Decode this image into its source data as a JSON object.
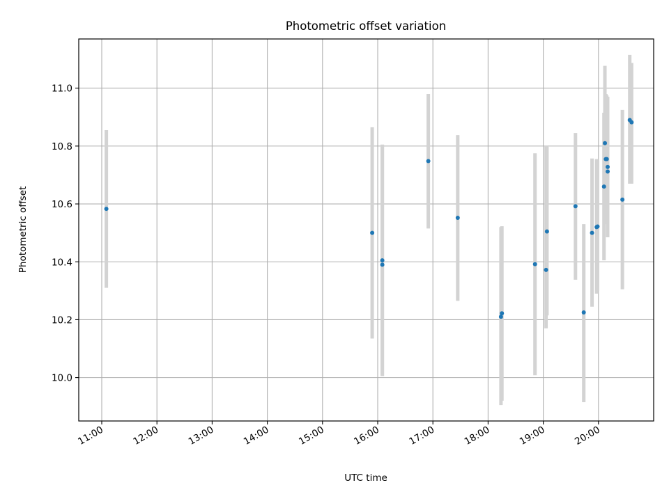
{
  "chart_data": {
    "type": "scatter",
    "title": "Photometric offset variation",
    "xlabel": "UTC time",
    "ylabel": "Photometric offset",
    "x_unit": "hours UTC",
    "xlim": [
      "10:35",
      "21:00"
    ],
    "ylim": [
      9.85,
      11.17
    ],
    "x_ticks": [
      "11:00",
      "12:00",
      "13:00",
      "14:00",
      "15:00",
      "16:00",
      "17:00",
      "18:00",
      "19:00",
      "20:00"
    ],
    "y_ticks": [
      "10.0",
      "10.2",
      "10.4",
      "10.6",
      "10.8",
      "11.0"
    ],
    "grid": true,
    "point_color": "#1f77b4",
    "errorbar_color": "#d3d3d3",
    "points": [
      {
        "x": "11:05",
        "y": 10.583,
        "lo": 10.31,
        "hi": 10.855
      },
      {
        "x": "15:54",
        "y": 10.5,
        "lo": 10.135,
        "hi": 10.865
      },
      {
        "x": "16:05",
        "y": 10.405,
        "lo": 10.005,
        "hi": 10.805
      },
      {
        "x": "16:05",
        "y": 10.39,
        "lo": 10.005,
        "hi": 10.8
      },
      {
        "x": "16:55",
        "y": 10.748,
        "lo": 10.515,
        "hi": 10.98
      },
      {
        "x": "17:27",
        "y": 10.552,
        "lo": 10.265,
        "hi": 10.838
      },
      {
        "x": "18:14",
        "y": 10.21,
        "lo": 9.905,
        "hi": 10.52
      },
      {
        "x": "18:15",
        "y": 10.222,
        "lo": 9.92,
        "hi": 10.523
      },
      {
        "x": "18:51",
        "y": 10.392,
        "lo": 10.008,
        "hi": 10.775
      },
      {
        "x": "19:03",
        "y": 10.372,
        "lo": 10.17,
        "hi": 10.8
      },
      {
        "x": "19:04",
        "y": 10.505,
        "lo": 10.215,
        "hi": 10.798
      },
      {
        "x": "19:35",
        "y": 10.592,
        "lo": 10.338,
        "hi": 10.845
      },
      {
        "x": "19:44",
        "y": 10.225,
        "lo": 9.915,
        "hi": 10.53
      },
      {
        "x": "19:53",
        "y": 10.5,
        "lo": 10.245,
        "hi": 10.757
      },
      {
        "x": "19:58",
        "y": 10.52,
        "lo": 10.29,
        "hi": 10.755
      },
      {
        "x": "19:59",
        "y": 10.522,
        "lo": 10.3,
        "hi": 10.75
      },
      {
        "x": "20:06",
        "y": 10.66,
        "lo": 10.405,
        "hi": 10.915
      },
      {
        "x": "20:07",
        "y": 10.81,
        "lo": 10.545,
        "hi": 11.077
      },
      {
        "x": "20:08",
        "y": 10.755,
        "lo": 10.53,
        "hi": 10.98
      },
      {
        "x": "20:09",
        "y": 10.755,
        "lo": 10.53,
        "hi": 10.975
      },
      {
        "x": "20:10",
        "y": 10.728,
        "lo": 10.485,
        "hi": 10.97
      },
      {
        "x": "20:10",
        "y": 10.712,
        "lo": 10.485,
        "hi": 10.94
      },
      {
        "x": "20:26",
        "y": 10.615,
        "lo": 10.305,
        "hi": 10.925
      },
      {
        "x": "20:34",
        "y": 10.89,
        "lo": 10.67,
        "hi": 11.115
      },
      {
        "x": "20:36",
        "y": 10.882,
        "lo": 10.67,
        "hi": 11.087
      }
    ]
  }
}
